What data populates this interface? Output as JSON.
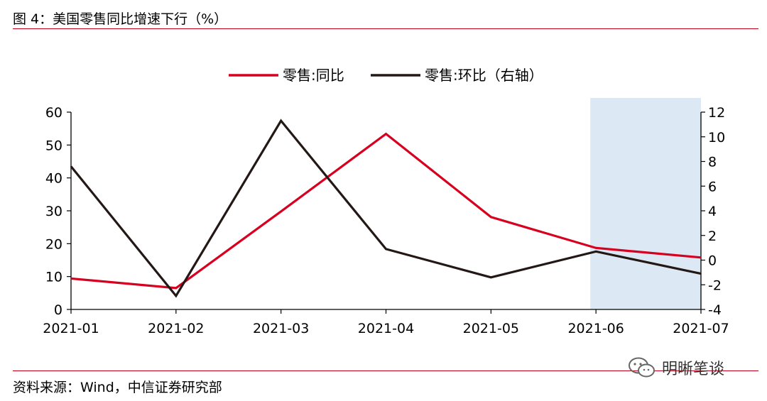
{
  "figure": {
    "title": "图 4：美国零售同比增速下行（%）",
    "source": "资料来源：Wind，中信证券研究部",
    "watermark": "明晰笔谈",
    "watermark_icon": "wechat-icon"
  },
  "chart_data": {
    "type": "line",
    "categories": [
      "2021-01",
      "2021-02",
      "2021-03",
      "2021-04",
      "2021-05",
      "2021-06",
      "2021-07"
    ],
    "series": [
      {
        "name": "零售:同比",
        "axis": "left",
        "color": "#d7001f",
        "values": [
          9.4,
          6.5,
          29.8,
          53.4,
          28.1,
          18.7,
          15.8
        ]
      },
      {
        "name": "零售:环比（右轴）",
        "axis": "right",
        "color": "#231815",
        "values": [
          7.6,
          -2.9,
          11.3,
          0.9,
          -1.4,
          0.7,
          -1.1
        ]
      }
    ],
    "y_left": {
      "min": 0,
      "max": 60,
      "ticks": [
        0,
        10,
        20,
        30,
        40,
        50,
        60
      ]
    },
    "y_right": {
      "min": -4,
      "max": 12,
      "ticks": [
        -4,
        -2,
        0,
        2,
        4,
        6,
        8,
        10,
        12
      ]
    },
    "highlight": {
      "from": "2021-06",
      "to": "2021-07",
      "color": "#dce9f5"
    },
    "legend_position": "top-center",
    "grid": false
  }
}
